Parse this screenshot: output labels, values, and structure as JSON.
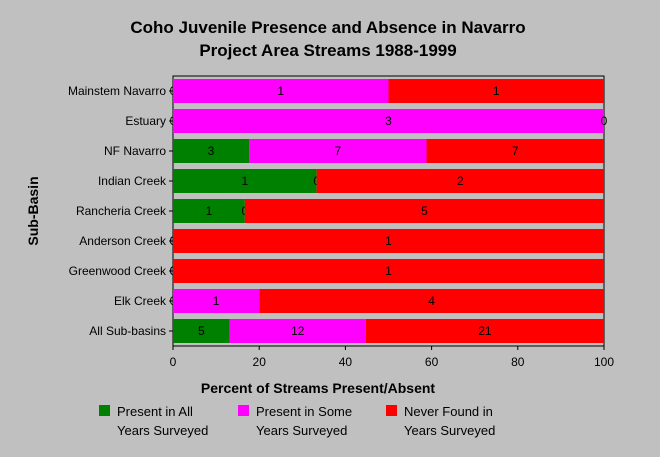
{
  "chart_data": {
    "type": "bar",
    "orientation": "horizontal",
    "stacked": "percent",
    "title_lines": [
      "Coho Juvenile Presence and Absence in Navarro",
      "Project Area Streams 1988-1999"
    ],
    "xlabel": "Percent of Streams Present/Absent",
    "ylabel": "Sub-Basin",
    "xlim": [
      0,
      100
    ],
    "xticks": [
      "0",
      "20",
      "40",
      "60",
      "80",
      "100"
    ],
    "grid": false,
    "legend_position": "bottom",
    "categories": [
      "Mainstem Navarro",
      "Estuary",
      "NF Navarro",
      "Indian Creek",
      "Rancheria Creek",
      "Anderson Creek",
      "Greenwood Creek",
      "Elk Creek",
      "All Sub-basins"
    ],
    "series": [
      {
        "name": "Present in All Years Surveyed",
        "legend_lines": [
          "Present in All",
          "Years Surveyed"
        ],
        "color": "#008000",
        "values": [
          0,
          0,
          3,
          1,
          1,
          0,
          0,
          0,
          5
        ]
      },
      {
        "name": "Present in Some Years Surveyed",
        "legend_lines": [
          "Present in Some",
          "Years Surveyed"
        ],
        "color": "#ff00ff",
        "values": [
          1,
          3,
          7,
          0,
          0,
          0,
          0,
          1,
          12
        ]
      },
      {
        "name": "Never Found in Years Surveyed",
        "legend_lines": [
          "Never Found in",
          "Years Surveyed"
        ],
        "color": "#ff0000",
        "values": [
          1,
          0,
          7,
          2,
          5,
          1,
          1,
          4,
          21
        ]
      }
    ]
  }
}
